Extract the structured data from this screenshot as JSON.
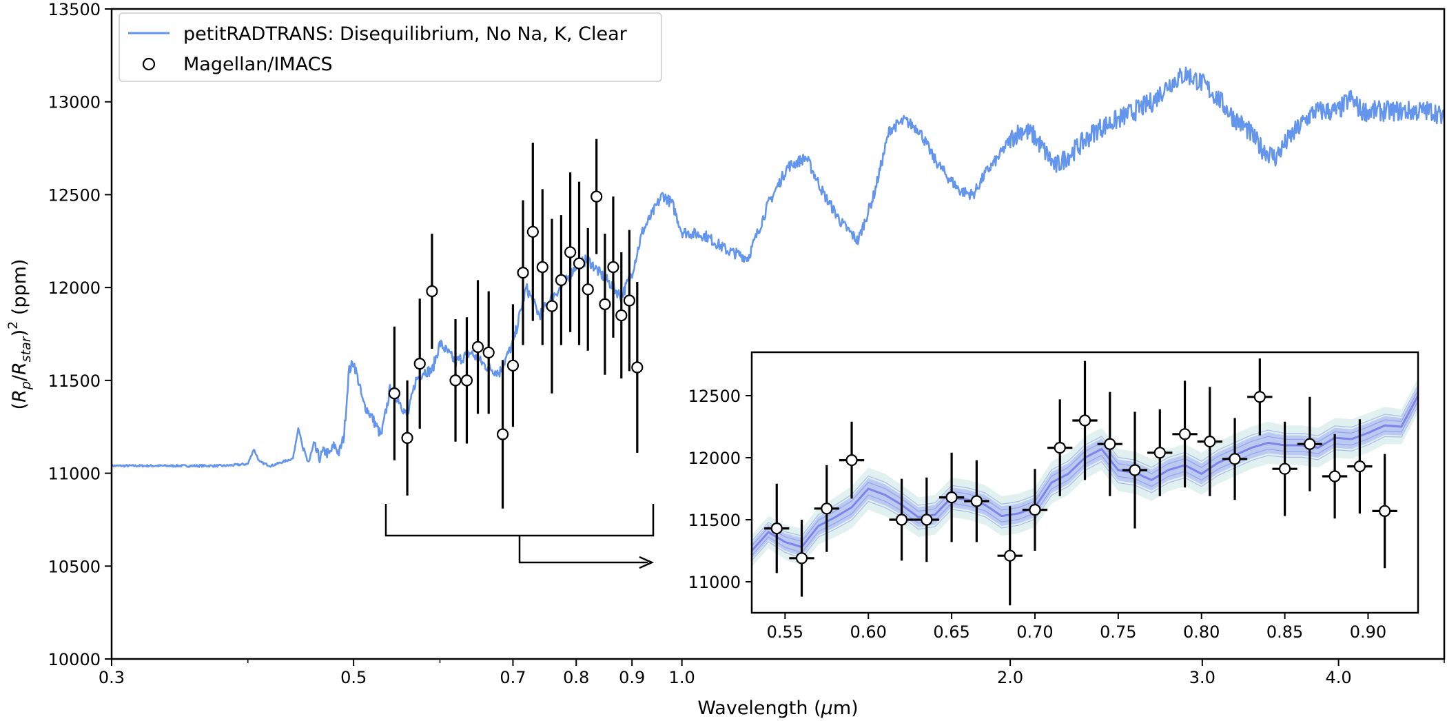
{
  "chart_data": [
    {
      "type": "line",
      "xscale": "log",
      "xlabel": "Wavelength (μm)",
      "ylabel": "(Rp/Rstar)^2 (ppm)",
      "ylabel_parts": {
        "open": "(",
        "r": "R",
        "p": "p",
        "slash": "/",
        "rstar": "R",
        "star": "star",
        "close": ")",
        "sq": "2",
        "unit": " (ppm)"
      },
      "xlabel_parts": {
        "pre": "Wavelength (",
        "mu": "μ",
        "post": "m)"
      },
      "xlim": [
        0.3,
        5.0
      ],
      "ylim": [
        10000,
        13500
      ],
      "xticks": [
        0.3,
        0.5,
        0.7,
        0.8,
        0.9,
        1.0,
        2.0,
        3.0,
        4.0
      ],
      "xtick_labels": [
        "0.3",
        "0.5",
        "0.7",
        "0.8",
        "0.9",
        "1.0",
        "2.0",
        "3.0",
        "4.0"
      ],
      "xminor_ticks": [
        0.4,
        0.6,
        5.0
      ],
      "yticks": [
        10000,
        10500,
        11000,
        11500,
        12000,
        12500,
        13000,
        13500
      ],
      "ytick_labels": [
        "10000",
        "10500",
        "11000",
        "11500",
        "12000",
        "12500",
        "13000",
        "13500"
      ],
      "legend": {
        "position": "upper-left",
        "entries": [
          "petitRADTRANS: Disequilibrium, No Na, K, Clear",
          "Magellan/IMACS"
        ]
      },
      "series": [
        {
          "name": "petitRADTRANS: Disequilibrium, No Na, K, Clear",
          "kind": "model-line",
          "color": "#6495ED",
          "x": [
            0.3,
            0.33,
            0.36,
            0.38,
            0.4,
            0.405,
            0.41,
            0.415,
            0.42,
            0.43,
            0.44,
            0.445,
            0.45,
            0.455,
            0.46,
            0.465,
            0.47,
            0.475,
            0.48,
            0.485,
            0.49,
            0.495,
            0.5,
            0.505,
            0.51,
            0.52,
            0.53,
            0.54,
            0.55,
            0.56,
            0.57,
            0.58,
            0.59,
            0.6,
            0.62,
            0.64,
            0.66,
            0.68,
            0.7,
            0.72,
            0.74,
            0.76,
            0.78,
            0.8,
            0.82,
            0.84,
            0.86,
            0.88,
            0.9,
            0.92,
            0.94,
            0.96,
            0.98,
            1.0,
            1.05,
            1.1,
            1.15,
            1.2,
            1.25,
            1.3,
            1.35,
            1.4,
            1.45,
            1.5,
            1.55,
            1.6,
            1.65,
            1.7,
            1.75,
            1.8,
            1.85,
            1.9,
            1.95,
            2.0,
            2.05,
            2.1,
            2.2,
            2.3,
            2.4,
            2.5,
            2.6,
            2.7,
            2.8,
            2.9,
            3.0,
            3.1,
            3.2,
            3.3,
            3.4,
            3.5,
            3.6,
            3.7,
            3.8,
            3.9,
            4.0,
            4.1,
            4.2,
            4.3,
            4.4,
            4.5,
            4.6,
            4.7,
            4.8,
            4.9,
            5.0
          ],
          "y": [
            11040,
            11040,
            11040,
            11040,
            11050,
            11130,
            11060,
            11050,
            11040,
            11060,
            11080,
            11250,
            11110,
            11060,
            11150,
            11080,
            11120,
            11100,
            11150,
            11110,
            11200,
            11550,
            11600,
            11500,
            11380,
            11300,
            11200,
            11450,
            11400,
            11300,
            11500,
            11550,
            11550,
            11700,
            11600,
            11650,
            11580,
            11540,
            11700,
            12000,
            11850,
            11950,
            12020,
            12120,
            12150,
            12080,
            12020,
            11950,
            12080,
            12300,
            12400,
            12500,
            12450,
            12300,
            12280,
            12200,
            12160,
            12450,
            12650,
            12700,
            12500,
            12350,
            12250,
            12500,
            12850,
            12900,
            12850,
            12700,
            12600,
            12520,
            12500,
            12620,
            12700,
            12800,
            12850,
            12820,
            12650,
            12750,
            12850,
            12900,
            12950,
            13000,
            13100,
            13150,
            13100,
            13020,
            12920,
            12850,
            12750,
            12700,
            12800,
            12880,
            12950,
            12950,
            12950,
            13020,
            12950,
            12950,
            12950,
            12950,
            12950,
            12950,
            12950,
            12950,
            12900
          ]
        },
        {
          "name": "Magellan/IMACS",
          "kind": "errorbar-points",
          "x": [
            0.545,
            0.56,
            0.575,
            0.59,
            0.62,
            0.635,
            0.65,
            0.665,
            0.685,
            0.7,
            0.715,
            0.73,
            0.745,
            0.76,
            0.775,
            0.79,
            0.805,
            0.82,
            0.835,
            0.85,
            0.865,
            0.88,
            0.895,
            0.91
          ],
          "y": [
            11430,
            11190,
            11590,
            11980,
            11500,
            11500,
            11680,
            11650,
            11210,
            11580,
            12080,
            12300,
            12110,
            11900,
            12040,
            12190,
            12130,
            11990,
            12490,
            11910,
            12110,
            11850,
            11930,
            11570
          ],
          "yerr": [
            360,
            310,
            350,
            310,
            330,
            340,
            360,
            330,
            400,
            330,
            390,
            480,
            420,
            470,
            350,
            430,
            440,
            330,
            310,
            380,
            380,
            340,
            380,
            460
          ],
          "xerr": [
            0.0075,
            0.0075,
            0.0075,
            0.0075,
            0.0075,
            0.0075,
            0.0075,
            0.0075,
            0.0075,
            0.0075,
            0.0075,
            0.0075,
            0.0075,
            0.0075,
            0.0075,
            0.0075,
            0.0075,
            0.0075,
            0.0075,
            0.0075,
            0.0075,
            0.0075,
            0.0075,
            0.0075
          ]
        }
      ],
      "zoom_bracket": {
        "x_from": 0.55,
        "x_to": 0.93,
        "description": "bracket with arrow pointing to inset"
      }
    },
    {
      "type": "line",
      "role": "inset",
      "xscale": "linear",
      "xlim": [
        0.53,
        0.93
      ],
      "ylim": [
        10750,
        12850
      ],
      "xticks": [
        0.55,
        0.6,
        0.65,
        0.7,
        0.75,
        0.8,
        0.85,
        0.9
      ],
      "xtick_labels": [
        "0.55",
        "0.60",
        "0.65",
        "0.70",
        "0.75",
        "0.80",
        "0.85",
        "0.90"
      ],
      "yticks": [
        11000,
        11500,
        12000,
        12500
      ],
      "ytick_labels": [
        "11000",
        "11500",
        "12000",
        "12500"
      ],
      "series": [
        {
          "name": "model draws",
          "kind": "band",
          "color": "#6A6CE8",
          "x": [
            0.53,
            0.54,
            0.55,
            0.56,
            0.57,
            0.58,
            0.59,
            0.6,
            0.61,
            0.62,
            0.63,
            0.64,
            0.65,
            0.66,
            0.67,
            0.68,
            0.69,
            0.7,
            0.71,
            0.72,
            0.73,
            0.74,
            0.75,
            0.76,
            0.77,
            0.78,
            0.79,
            0.8,
            0.81,
            0.82,
            0.83,
            0.84,
            0.85,
            0.86,
            0.87,
            0.88,
            0.89,
            0.9,
            0.91,
            0.92,
            0.93
          ],
          "y": [
            11250,
            11400,
            11320,
            11280,
            11450,
            11520,
            11600,
            11750,
            11700,
            11620,
            11520,
            11540,
            11680,
            11660,
            11620,
            11530,
            11550,
            11600,
            11800,
            11870,
            12000,
            12070,
            11900,
            11880,
            11820,
            11900,
            11940,
            11870,
            11960,
            12020,
            12080,
            12120,
            12100,
            12100,
            12080,
            12160,
            12150,
            12200,
            12260,
            12250,
            12500
          ],
          "band": [
            130,
            130,
            140,
            150,
            150,
            160,
            170,
            170,
            170,
            160,
            160,
            160,
            160,
            160,
            160,
            160,
            160,
            160,
            170,
            170,
            170,
            170,
            170,
            170,
            170,
            170,
            170,
            170,
            170,
            170,
            170,
            170,
            160,
            160,
            160,
            160,
            160,
            160,
            150,
            140,
            140
          ]
        },
        {
          "name": "Magellan/IMACS",
          "kind": "errorbar-points",
          "x": [
            0.545,
            0.56,
            0.575,
            0.59,
            0.62,
            0.635,
            0.65,
            0.665,
            0.685,
            0.7,
            0.715,
            0.73,
            0.745,
            0.76,
            0.775,
            0.79,
            0.805,
            0.82,
            0.835,
            0.85,
            0.865,
            0.88,
            0.895,
            0.91
          ],
          "y": [
            11430,
            11190,
            11590,
            11980,
            11500,
            11500,
            11680,
            11650,
            11210,
            11580,
            12080,
            12300,
            12110,
            11900,
            12040,
            12190,
            12130,
            11990,
            12490,
            11910,
            12110,
            11850,
            11930,
            11570
          ],
          "yerr": [
            360,
            310,
            350,
            310,
            330,
            340,
            360,
            330,
            400,
            330,
            390,
            480,
            420,
            470,
            350,
            430,
            440,
            330,
            310,
            380,
            380,
            340,
            380,
            460
          ],
          "xerr": [
            0.0075,
            0.0075,
            0.0075,
            0.0075,
            0.0075,
            0.0075,
            0.0075,
            0.0075,
            0.0075,
            0.0075,
            0.0075,
            0.0075,
            0.0075,
            0.0075,
            0.0075,
            0.0075,
            0.0075,
            0.0075,
            0.0075,
            0.0075,
            0.0075,
            0.0075,
            0.0075,
            0.0075
          ]
        }
      ]
    }
  ]
}
